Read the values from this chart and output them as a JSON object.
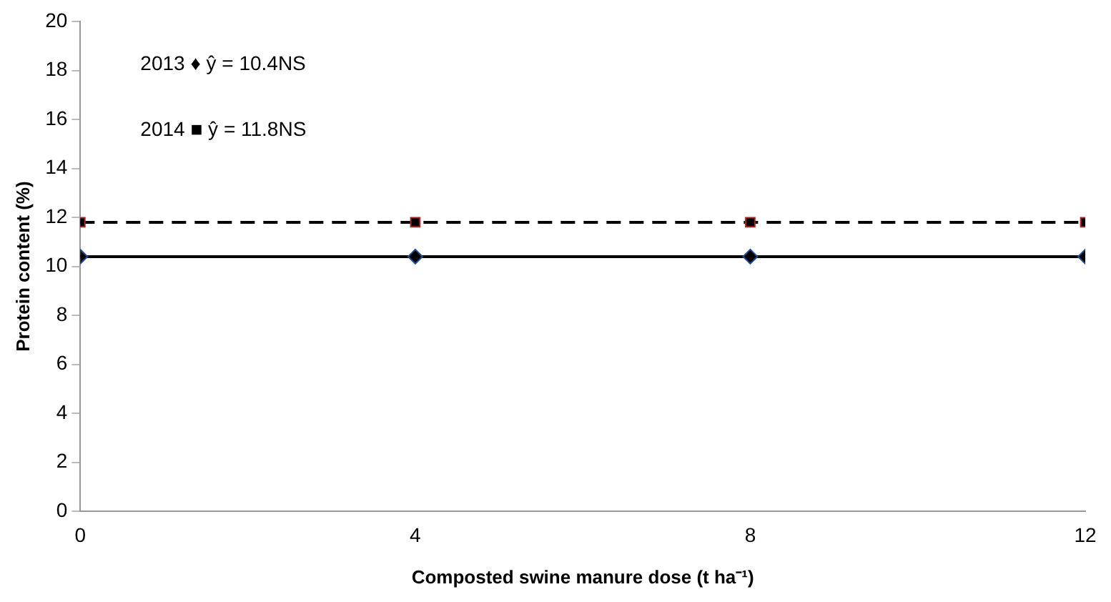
{
  "chart_data": {
    "type": "line",
    "xlabel": "Composted swine manure dose (t ha⁻¹)",
    "ylabel": "Protein content (%)",
    "x": [
      0,
      4,
      8,
      12
    ],
    "xlim": [
      0,
      12
    ],
    "xticks": [
      0,
      4,
      8,
      12
    ],
    "ylim": [
      0,
      20
    ],
    "yticks": [
      0,
      2,
      4,
      6,
      8,
      10,
      12,
      14,
      16,
      18,
      20
    ],
    "grid": false,
    "legend": false,
    "series": [
      {
        "color": "#000000",
        "values": [
          10.4,
          10.4,
          10.4,
          10.4
        ],
        "marker": "diamond",
        "line_style": "solid"
      },
      {
        "color": "#000000",
        "values": [
          11.8,
          11.8,
          11.8,
          11.8
        ],
        "marker": "square",
        "line_style": "dashed"
      }
    ],
    "annotations": [
      "2013 ♦ ŷ = 10.4NS",
      "2014 ■ ŷ = 11.8NS"
    ]
  }
}
